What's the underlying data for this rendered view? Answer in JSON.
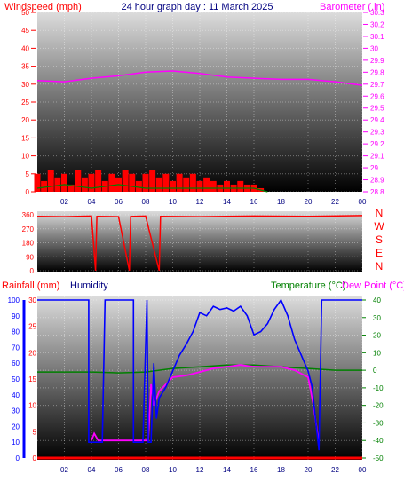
{
  "header": {
    "windspeed_label": "Windspeed (mph)",
    "title": "24 hour graph day : 11 March 2025",
    "barometer_label": "Barometer (.in)"
  },
  "legend_bottom": {
    "rainfall_label": "Rainfall (mm)",
    "humidity_label": "Humidity",
    "temperature_label": "Temperature (°C)",
    "dewpoint_label": "Dew Point (°C)"
  },
  "colors": {
    "wind": "#ff0000",
    "wind_gust": "#008000",
    "barometer": "#ff00ff",
    "direction": "#ff0000",
    "rain": "#ff0000",
    "humidity": "#0000ff",
    "temperature": "#008000",
    "dewpoint": "#ff00ff",
    "tick_red": "#ff0000",
    "tick_blue": "#0000ff",
    "tick_green": "#008000",
    "tick_magenta": "#ff00ff"
  },
  "x_ticks": [
    "02",
    "04",
    "06",
    "08",
    "10",
    "12",
    "14",
    "16",
    "18",
    "20",
    "22",
    "00"
  ],
  "chart_data": [
    {
      "type": "line",
      "name_left": "Windspeed (mph)",
      "name_right": "Barometer (.in)",
      "left_axis": {
        "ylim": [
          0,
          50
        ],
        "ticks": [
          "0",
          "5",
          "10",
          "15",
          "20",
          "25",
          "30",
          "35",
          "40",
          "45",
          "50"
        ]
      },
      "right_axis": {
        "ylim": [
          28.8,
          30.3
        ],
        "ticks": [
          "28.8",
          "28.9",
          "29",
          "29.1",
          "29.2",
          "29.3",
          "29.4",
          "29.5",
          "29.6",
          "29.7",
          "29.8",
          "29.9",
          "30",
          "30.1",
          "30.2",
          "30.3"
        ]
      },
      "x_hours": [
        0,
        24
      ],
      "series": [
        {
          "name": "Windspeed",
          "points": [
            [
              0,
              5
            ],
            [
              0.5,
              3
            ],
            [
              1,
              6
            ],
            [
              1.5,
              4
            ],
            [
              2,
              5
            ],
            [
              2.5,
              2
            ],
            [
              3,
              6
            ],
            [
              3.5,
              4
            ],
            [
              4,
              5
            ],
            [
              4.5,
              6
            ],
            [
              5,
              3
            ],
            [
              5.5,
              5
            ],
            [
              6,
              4
            ],
            [
              6.5,
              6
            ],
            [
              7,
              5
            ],
            [
              7.5,
              3
            ],
            [
              8,
              5
            ],
            [
              8.5,
              6
            ],
            [
              9,
              4
            ],
            [
              9.5,
              5
            ],
            [
              10,
              3
            ],
            [
              10.5,
              5
            ],
            [
              11,
              4
            ],
            [
              11.5,
              5
            ],
            [
              12,
              3
            ],
            [
              12.5,
              4
            ],
            [
              13,
              3
            ],
            [
              13.5,
              2
            ],
            [
              14,
              3
            ],
            [
              14.5,
              2
            ],
            [
              15,
              3
            ],
            [
              15.5,
              2
            ],
            [
              16,
              2
            ],
            [
              16.5,
              1
            ],
            [
              17,
              0
            ]
          ]
        },
        {
          "name": "Gust",
          "points": [
            [
              0,
              1
            ],
            [
              2,
              2
            ],
            [
              4,
              1
            ],
            [
              6,
              2
            ],
            [
              8,
              1
            ],
            [
              10,
              1
            ],
            [
              12,
              1
            ],
            [
              14,
              1
            ],
            [
              16,
              1
            ],
            [
              17,
              0
            ]
          ]
        },
        {
          "name": "Barometer",
          "points": [
            [
              0,
              29.73
            ],
            [
              2,
              29.72
            ],
            [
              4,
              29.75
            ],
            [
              6,
              29.77
            ],
            [
              8,
              29.8
            ],
            [
              10,
              29.81
            ],
            [
              12,
              29.79
            ],
            [
              14,
              29.76
            ],
            [
              16,
              29.75
            ],
            [
              18,
              29.74
            ],
            [
              20,
              29.74
            ],
            [
              22,
              29.72
            ],
            [
              24,
              29.69
            ]
          ]
        }
      ]
    },
    {
      "type": "line",
      "name": "Wind Direction",
      "ylim": [
        0,
        360
      ],
      "ticks": [
        "0",
        "90",
        "180",
        "270",
        "360"
      ],
      "compass": [
        "N",
        "W",
        "S",
        "E",
        "N"
      ],
      "series": [
        {
          "name": "Direction",
          "points": [
            [
              0,
              350
            ],
            [
              2,
              348
            ],
            [
              4,
              352
            ],
            [
              4.3,
              0
            ],
            [
              4.4,
              350
            ],
            [
              6,
              348
            ],
            [
              6.8,
              0
            ],
            [
              6.9,
              350
            ],
            [
              8,
              352
            ],
            [
              9,
              0
            ],
            [
              9.1,
              350
            ],
            [
              12,
              348
            ],
            [
              16,
              352
            ],
            [
              20,
              350
            ],
            [
              24,
              355
            ]
          ]
        }
      ]
    },
    {
      "type": "line",
      "name_left": "Rainfall (mm) Humidity",
      "name_right": "Temperature (°C) Dew Point (°C)",
      "rain_axis": {
        "ylim": [
          0,
          30
        ],
        "ticks": [
          "0",
          "5",
          "10",
          "15",
          "20",
          "25",
          "30"
        ]
      },
      "humidity_axis": {
        "ylim": [
          0,
          100
        ],
        "ticks": [
          "0",
          "10",
          "20",
          "30",
          "40",
          "50",
          "60",
          "70",
          "80",
          "90",
          "100"
        ]
      },
      "temp_axis": {
        "ylim": [
          -50,
          40
        ],
        "ticks": [
          "40",
          "30",
          "20",
          "10",
          "0",
          "-10",
          "-20",
          "-30",
          "-40",
          "-50"
        ]
      },
      "series": [
        {
          "name": "Rainfall",
          "points": [
            [
              0,
              0
            ],
            [
              24,
              0
            ]
          ]
        },
        {
          "name": "Humidity",
          "points": [
            [
              0,
              100
            ],
            [
              3.8,
              100
            ],
            [
              3.8,
              10
            ],
            [
              4.2,
              10
            ],
            [
              4.5,
              10
            ],
            [
              4.8,
              10
            ],
            [
              5,
              100
            ],
            [
              7.1,
              100
            ],
            [
              7.1,
              10
            ],
            [
              7.8,
              10
            ],
            [
              8.1,
              100
            ],
            [
              8.2,
              10
            ],
            [
              8.4,
              10
            ],
            [
              8.6,
              60
            ],
            [
              8.8,
              25
            ],
            [
              9,
              38
            ],
            [
              9.5,
              45
            ],
            [
              10,
              55
            ],
            [
              10.5,
              65
            ],
            [
              11,
              72
            ],
            [
              11.5,
              80
            ],
            [
              12,
              92
            ],
            [
              12.5,
              90
            ],
            [
              13,
              96
            ],
            [
              13.5,
              94
            ],
            [
              14,
              95
            ],
            [
              14.5,
              93
            ],
            [
              15,
              96
            ],
            [
              15.5,
              90
            ],
            [
              16,
              78
            ],
            [
              16.5,
              80
            ],
            [
              17,
              85
            ],
            [
              17.5,
              94
            ],
            [
              18,
              100
            ],
            [
              18.5,
              90
            ],
            [
              19,
              75
            ],
            [
              19.5,
              65
            ],
            [
              20,
              55
            ],
            [
              20.3,
              45
            ],
            [
              20.6,
              20
            ],
            [
              20.8,
              5
            ],
            [
              21,
              100
            ],
            [
              24,
              100
            ]
          ]
        },
        {
          "name": "Temperature",
          "points": [
            [
              0,
              -1
            ],
            [
              4,
              -1
            ],
            [
              6,
              -1.5
            ],
            [
              8,
              -1
            ],
            [
              10,
              1
            ],
            [
              12,
              2
            ],
            [
              14,
              3
            ],
            [
              16,
              3
            ],
            [
              18,
              2
            ],
            [
              20,
              1
            ],
            [
              22,
              0
            ],
            [
              24,
              0
            ]
          ]
        },
        {
          "name": "Dew Point",
          "points": [
            [
              4,
              -40
            ],
            [
              4.2,
              -36
            ],
            [
              4.5,
              -40
            ],
            [
              7.8,
              -40
            ],
            [
              8.2,
              -40
            ],
            [
              8.4,
              -8
            ],
            [
              8.6,
              -20
            ],
            [
              9,
              -12
            ],
            [
              9.5,
              -8
            ],
            [
              10,
              -4
            ],
            [
              11,
              -3
            ],
            [
              12,
              -1
            ],
            [
              13,
              1
            ],
            [
              14,
              2
            ],
            [
              15,
              3
            ],
            [
              16,
              2
            ],
            [
              17,
              2
            ],
            [
              18,
              2
            ],
            [
              19,
              0
            ],
            [
              20,
              -4
            ],
            [
              20.4,
              -20
            ],
            [
              20.8,
              -42
            ]
          ]
        }
      ]
    }
  ]
}
